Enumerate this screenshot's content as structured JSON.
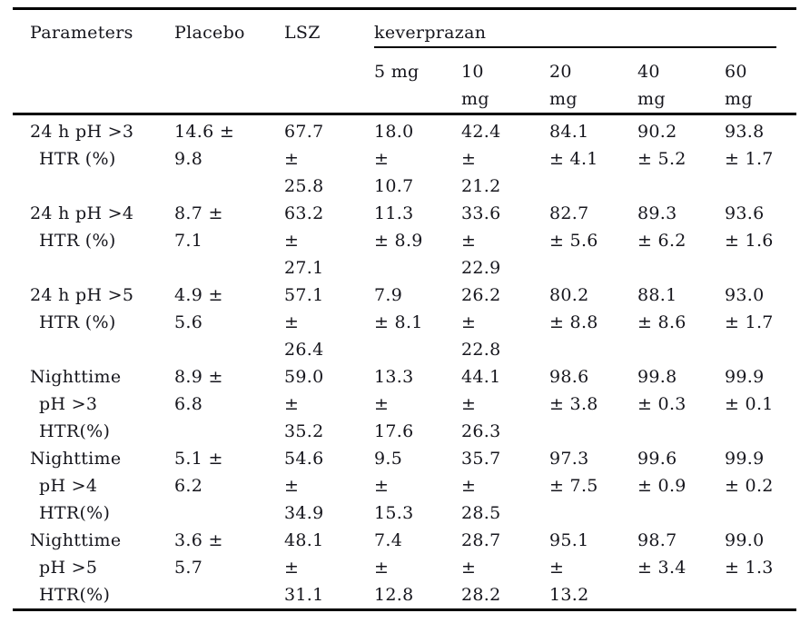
{
  "page": {
    "background": "#ffffff",
    "text_color": "#16161d",
    "rule_color": "#000000"
  },
  "table": {
    "header": {
      "parameters": "Parameters",
      "placebo": "Placebo",
      "lsz": "LSZ",
      "group": "keverprazan",
      "doses": [
        "5 mg",
        "10\nmg",
        "20\nmg",
        "40\nmg",
        "60\nmg"
      ]
    },
    "rows": [
      {
        "param": [
          "24 h pH >3",
          "HTR (%)",
          ""
        ],
        "cells": [
          "14.6 ±\n9.8",
          "67.7\n±\n25.8",
          "18.0\n±\n10.7",
          "42.4\n±\n21.2",
          "84.1\n± 4.1",
          "90.2\n± 5.2",
          "93.8\n± 1.7"
        ]
      },
      {
        "param": [
          "24 h pH >4",
          "HTR (%)",
          ""
        ],
        "cells": [
          "8.7 ±\n7.1",
          "63.2\n±\n27.1",
          "11.3\n± 8.9",
          "33.6\n±\n22.9",
          "82.7\n± 5.6",
          "89.3\n± 6.2",
          "93.6\n± 1.6"
        ]
      },
      {
        "param": [
          "24 h pH >5",
          "HTR (%)",
          ""
        ],
        "cells": [
          "4.9 ±\n5.6",
          "57.1\n±\n26.4",
          "7.9\n± 8.1",
          "26.2\n±\n22.8",
          "80.2\n± 8.8",
          "88.1\n± 8.6",
          "93.0\n± 1.7"
        ]
      },
      {
        "param": [
          "Nighttime",
          "pH >3",
          "HTR(%)"
        ],
        "cells": [
          "8.9 ±\n6.8",
          "59.0\n±\n35.2",
          "13.3\n±\n17.6",
          "44.1\n±\n26.3",
          "98.6\n± 3.8",
          "99.8\n± 0.3",
          "99.9\n± 0.1"
        ]
      },
      {
        "param": [
          "Nighttime",
          "pH >4",
          "HTR(%)"
        ],
        "cells": [
          "5.1 ±\n6.2",
          "54.6\n±\n34.9",
          "9.5\n±\n15.3",
          "35.7\n±\n28.5",
          "97.3\n± 7.5",
          "99.6\n± 0.9",
          "99.9\n± 0.2"
        ]
      },
      {
        "param": [
          "Nighttime",
          "pH >5",
          "HTR(%)"
        ],
        "cells": [
          "3.6 ±\n5.7",
          "48.1\n±\n31.1",
          "7.4\n±\n12.8",
          "28.7\n±\n28.2",
          "95.1\n±\n13.2",
          "98.7\n± 3.4",
          "99.0\n± 1.3"
        ]
      }
    ]
  }
}
